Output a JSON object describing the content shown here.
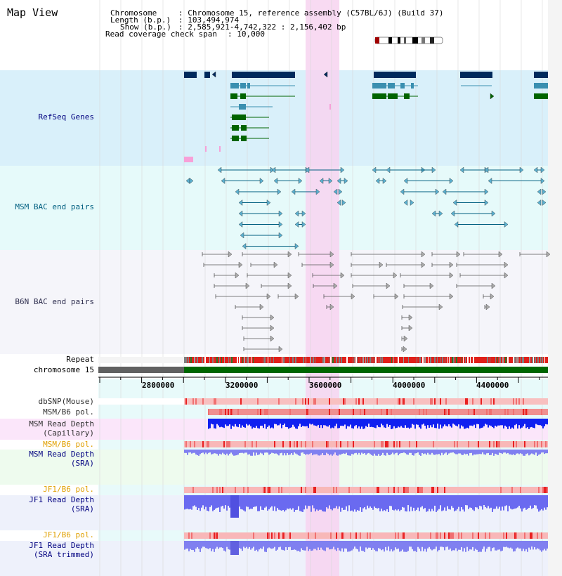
{
  "title": "Map View",
  "header": {
    "chromosome_label": "Chromosome",
    "chromosome_value": "Chromosome 15, reference assembly (C57BL/6J) (Build 37)",
    "length_label": "Length (b.p.)",
    "length_value": "103,494,974",
    "show_label": "Show (b.p.)",
    "show_value": "2,585,921-4,742,322 : 2,156,402 bp",
    "coverage_label": "Read coverage check span",
    "coverage_value": "10,000"
  },
  "tracks": {
    "refseq": "RefSeq Genes",
    "msm_bac": "MSM BAC end pairs",
    "b6n_bac": "B6N BAC end pairs",
    "repeat": "Repeat",
    "chromosome": "chromosome 15",
    "dbsnp": "dbSNP(Mouse)",
    "msm_b6_pol_1": "MSM/B6 pol.",
    "msm_depth_cap_1": "MSM Read Depth",
    "msm_depth_cap_2": "(Capillary)",
    "msm_b6_pol_2": "MSM/B6 pol.",
    "msm_depth_sra_1": "MSM Read Depth",
    "msm_depth_sra_2": "(SRA)",
    "jf1_b6_pol_1": "JF1/B6 pol.",
    "jf1_depth_sra_1": "JF1 Read Depth",
    "jf1_depth_sra_2": "(SRA)",
    "jf1_b6_pol_2": "JF1/B6 pol.",
    "jf1_depth_trim_1": "JF1 Read Depth",
    "jf1_depth_trim_2": "(SRA trimmed)"
  },
  "axis": {
    "ticks": [
      "2800000",
      "3200000",
      "3600000",
      "4000000",
      "4400000"
    ]
  },
  "colors": {
    "refseq_bg": "#d9f0fa",
    "msm_bac_bg": "#e6fafa",
    "b6n_bac_bg": "#f5f5fa",
    "highlight": "#f7d4f0",
    "label_blue": "#000080",
    "label_orange": "#e0a000",
    "gene_navy": "#002a5c",
    "gene_green": "#006400",
    "msm_line": "#005f80",
    "repeat_red": "#e0201a",
    "chrom_green": "#006600"
  }
}
